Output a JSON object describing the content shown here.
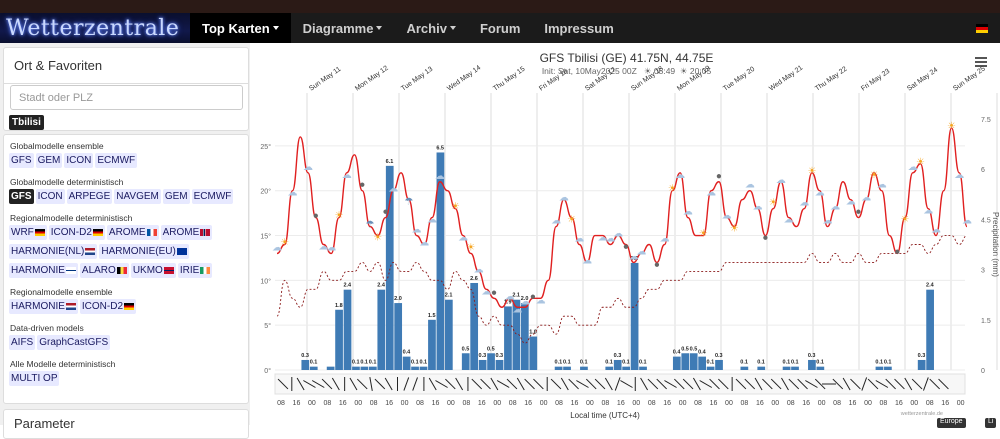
{
  "nav": {
    "logo": "Wetterzentrale",
    "items": [
      {
        "label": "Top Karten",
        "caret": true,
        "active": true
      },
      {
        "label": "Diagramme",
        "caret": true,
        "active": false
      },
      {
        "label": "Archiv",
        "caret": true,
        "active": false
      },
      {
        "label": "Forum",
        "caret": false,
        "active": false
      },
      {
        "label": "Impressum",
        "caret": false,
        "active": false
      }
    ]
  },
  "sidebar": {
    "location_title": "Ort & Favoriten",
    "search_placeholder": "Stadt oder PLZ",
    "favorite": "Tbilisi",
    "groups": [
      {
        "title": "Globalmodelle ensemble",
        "rows": [
          [
            {
              "label": "GFS"
            },
            {
              "label": "GEM"
            },
            {
              "label": "ICON"
            },
            {
              "label": "ECMWF"
            }
          ]
        ]
      },
      {
        "title": "Globalmodelle deterministisch",
        "rows": [
          [
            {
              "label": "GFS",
              "sel": true
            },
            {
              "label": "ICON"
            },
            {
              "label": "ARPEGE"
            },
            {
              "label": "NAVGEM"
            },
            {
              "label": "GEM"
            },
            {
              "label": "ECMWF"
            }
          ]
        ]
      },
      {
        "title": "Regionalmodelle deterministisch",
        "rows": [
          [
            {
              "label": "WRF",
              "flag": "de"
            },
            {
              "label": "ICON-D2",
              "flag": "de"
            },
            {
              "label": "AROME",
              "flag": "fr"
            },
            {
              "label": "AROME",
              "flag": "no"
            }
          ],
          [
            {
              "label": "HARMONIE(NL)",
              "flag": "nl"
            },
            {
              "label": "HARMONIE(EU)",
              "flag": "eu"
            }
          ],
          [
            {
              "label": "HARMONIE",
              "flag": "fi"
            },
            {
              "label": "ALARO",
              "flag": "be"
            },
            {
              "label": "UKMO",
              "flag": "uk"
            },
            {
              "label": "IRIE",
              "flag": "ie"
            }
          ]
        ]
      },
      {
        "title": "Regionalmodelle ensemble",
        "rows": [
          [
            {
              "label": "HARMONIE",
              "flag": "nl"
            },
            {
              "label": "ICON-D2",
              "flag": "de"
            }
          ]
        ]
      },
      {
        "title": "Data-driven models",
        "rows": [
          [
            {
              "label": "AIFS"
            },
            {
              "label": "GraphCastGFS"
            }
          ]
        ]
      },
      {
        "title": "Alle Modelle deterministisch",
        "rows": [
          [
            {
              "label": "MULTI OP"
            }
          ]
        ]
      }
    ],
    "param_title": "Parameter"
  },
  "colors": {
    "temp": "#e02020",
    "dew": "#8b1a1a",
    "precip": "#3f7bb5",
    "de_flag_red": "#dd0000",
    "de_flag_gold": "#ffce00"
  },
  "chart_data": {
    "type": "bar",
    "title": "GFS Tbilisi (GE) 41.75N, 44.75E",
    "subtitle": "Init: Sat, 10May2025 00Z",
    "sunrise": "05:49",
    "sunset": "20:05",
    "days": [
      "Sun May 11",
      "Mon May 12",
      "Tue May 13",
      "Wed May 14",
      "Thu May 15",
      "Fri May 16",
      "Sat May 17",
      "Sun May 18",
      "Mon May 19",
      "Tue May 20",
      "Wed May 21",
      "Thu May 22",
      "Fri May 23",
      "Sat May 24",
      "Sun May 25"
    ],
    "xticks": [
      "08",
      "16",
      "00",
      "08",
      "16",
      "00",
      "08",
      "16",
      "00",
      "08",
      "16",
      "00",
      "08",
      "16",
      "00",
      "08",
      "16",
      "00",
      "08",
      "16",
      "00",
      "08",
      "16",
      "00",
      "08",
      "16",
      "00",
      "08",
      "16",
      "00",
      "08",
      "16",
      "00",
      "08",
      "16",
      "00",
      "08",
      "16",
      "00",
      "08",
      "16",
      "00",
      "08",
      "16",
      "00"
    ],
    "xlabel": "Local time (UTC+4)",
    "ylabel_right": "Precipitation (mm)",
    "y_left_ticks": [
      "25°",
      "20°",
      "15°",
      "10°",
      "5°",
      "0°"
    ],
    "y_right_ticks": [
      "7.5",
      "6",
      "4.5",
      "3",
      "1.5",
      "0"
    ],
    "temp_range": [
      0,
      28
    ],
    "precip_range": [
      0,
      7.5
    ],
    "temperature": [
      13,
      14,
      20,
      26,
      22,
      17,
      14,
      13,
      17,
      22,
      24,
      20,
      16,
      15,
      17,
      20,
      22,
      19,
      15,
      14,
      17,
      21,
      20,
      18,
      15,
      13,
      11,
      9,
      8,
      7,
      8,
      7,
      7,
      8,
      8,
      10,
      16,
      19,
      17,
      14,
      12,
      15,
      15,
      14,
      15,
      14,
      12,
      13,
      14,
      12,
      14,
      20,
      22,
      17,
      15,
      15,
      20,
      21,
      17,
      16,
      19,
      20,
      18,
      15,
      18,
      21,
      17,
      16,
      18,
      22,
      20,
      16,
      18,
      21,
      19,
      17,
      19,
      22,
      20,
      15,
      13,
      17,
      22,
      23,
      18,
      15,
      20,
      27,
      22,
      16
    ],
    "dewpoint": [
      6,
      10,
      8,
      7,
      9,
      9,
      11,
      10,
      10,
      11,
      11,
      12,
      11,
      12,
      10,
      12,
      11,
      11,
      12,
      11,
      10,
      10,
      9,
      11,
      10,
      9,
      6,
      5,
      6,
      5,
      5,
      4,
      3,
      4,
      5,
      5,
      4,
      6,
      6,
      5,
      5,
      5,
      7,
      7,
      8,
      7,
      7,
      8,
      9,
      9,
      10,
      10,
      10,
      11,
      11,
      11,
      11,
      11,
      12,
      12,
      12,
      12,
      12,
      12,
      12,
      12,
      12,
      12,
      12,
      13,
      12,
      12,
      13,
      12,
      12,
      13,
      12,
      12,
      13,
      13,
      13,
      13,
      14,
      14,
      13,
      14,
      15,
      15,
      14,
      15
    ],
    "precip": [
      0,
      0.3,
      0.1,
      0,
      0.1,
      1.8,
      2.4,
      0.1,
      0.1,
      0.1,
      2.4,
      6.1,
      2.0,
      0.4,
      0.1,
      0.1,
      1.5,
      6.5,
      2.1,
      0,
      0.5,
      2.6,
      0.3,
      0.5,
      0.3,
      1.9,
      2.1,
      2.0,
      1.0,
      0,
      0,
      0.1,
      0.1,
      0,
      0.1,
      0,
      0,
      0.1,
      0.3,
      0.1,
      3.2,
      0.1,
      0,
      0,
      0,
      0.4,
      0.5,
      0.5,
      0.4,
      0.1,
      0.3,
      0,
      0,
      0.1,
      0,
      0.1,
      0,
      0,
      0.1,
      0.1,
      0,
      0.3,
      0.1,
      0,
      0,
      0,
      0,
      0,
      0,
      0.1,
      0.1,
      0,
      0,
      0,
      0.3,
      2.4
    ],
    "precip_labels": [
      {
        "i": 1,
        "v": "0.3"
      },
      {
        "i": 2,
        "v": "0.1"
      },
      {
        "i": 5,
        "v": "1.8"
      },
      {
        "i": 6,
        "v": "2.4"
      },
      {
        "i": 7,
        "v": "0.1"
      },
      {
        "i": 8,
        "v": "0.1"
      },
      {
        "i": 9,
        "v": "0.1"
      },
      {
        "i": 10,
        "v": "2.4"
      },
      {
        "i": 11,
        "v": "6.1"
      },
      {
        "i": 12,
        "v": "2.0"
      },
      {
        "i": 13,
        "v": "0.4"
      },
      {
        "i": 14,
        "v": "0.1"
      },
      {
        "i": 15,
        "v": "0.1"
      },
      {
        "i": 16,
        "v": "1.5"
      },
      {
        "i": 17,
        "v": "6.5"
      },
      {
        "i": 18,
        "v": "2.1"
      },
      {
        "i": 20,
        "v": "0.5"
      },
      {
        "i": 21,
        "v": "2.6"
      },
      {
        "i": 22,
        "v": "0.3"
      },
      {
        "i": 23,
        "v": "0.5"
      },
      {
        "i": 24,
        "v": "0.3"
      },
      {
        "i": 25,
        "v": "1.9"
      },
      {
        "i": 26,
        "v": "2.1"
      },
      {
        "i": 27,
        "v": "2.0"
      },
      {
        "i": 28,
        "v": "1.0"
      },
      {
        "i": 31,
        "v": "0.1"
      },
      {
        "i": 32,
        "v": "0.1"
      },
      {
        "i": 34,
        "v": "0.1"
      },
      {
        "i": 37,
        "v": "0.1"
      },
      {
        "i": 38,
        "v": "0.3"
      },
      {
        "i": 39,
        "v": "0.1"
      },
      {
        "i": 40,
        "v": "3.2"
      },
      {
        "i": 41,
        "v": "0.1"
      },
      {
        "i": 45,
        "v": "0.4"
      },
      {
        "i": 46,
        "v": "0.5"
      },
      {
        "i": 47,
        "v": "0.5"
      },
      {
        "i": 48,
        "v": "0.4"
      },
      {
        "i": 49,
        "v": "0.1"
      },
      {
        "i": 50,
        "v": "0.3"
      },
      {
        "i": 53,
        "v": "0.1"
      },
      {
        "i": 55,
        "v": "0.1"
      },
      {
        "i": 58,
        "v": "0.1"
      },
      {
        "i": 59,
        "v": "0.1"
      },
      {
        "i": 61,
        "v": "0.3"
      },
      {
        "i": 62,
        "v": "0.1"
      },
      {
        "i": 69,
        "v": "0.1"
      },
      {
        "i": 70,
        "v": "0.1"
      },
      {
        "i": 74,
        "v": "0.3"
      },
      {
        "i": 75,
        "v": "2.4"
      }
    ],
    "wind_dir_deg": [
      315,
      0,
      330,
      300,
      300,
      315,
      330,
      0,
      330,
      315,
      350,
      315,
      330,
      0,
      200,
      20,
      0,
      330,
      300,
      315,
      330,
      0,
      315,
      315,
      330,
      300,
      315,
      330,
      315,
      315,
      0,
      315,
      330,
      315,
      300,
      315,
      315,
      330,
      20,
      300,
      0,
      330,
      315,
      315,
      300,
      315,
      315,
      330,
      300,
      315,
      315,
      0,
      315,
      315,
      330,
      315,
      315,
      330,
      315,
      315,
      300,
      315,
      90,
      315,
      330,
      315,
      20,
      315,
      300,
      315,
      315,
      330,
      315,
      20,
      315,
      315
    ],
    "icons": [
      "cloud",
      "sun",
      "cloud",
      "cloud",
      "moon",
      "cloud",
      "cloud",
      "sun",
      "cloud",
      "moon",
      "rain",
      "sun",
      "moon",
      "cloud",
      "rain",
      "cloud",
      "cloud",
      "cloud",
      "cloud",
      "sun",
      "cloud",
      "sun",
      "cloud",
      "cloud",
      "moon",
      "cloud",
      "cloud",
      "cloud",
      "moon",
      "cloud",
      "cloud",
      "cloud",
      "sun",
      "cloud",
      "cloud",
      "cloud",
      "cloud",
      "cloud",
      "moon",
      "cloud",
      "cloud",
      "moon",
      "cloud",
      "sun",
      "cloud",
      "cloud",
      "sun",
      "cloud",
      "moon",
      "cloud",
      "sun",
      "cloud",
      "cloud",
      "moon",
      "sun",
      "cloud",
      "cloud",
      "cloud",
      "sun",
      "cloud",
      "cloud",
      "cloud",
      "cloud",
      "moon",
      "cloud",
      "sun",
      "cloud",
      "moon",
      "sun",
      "cloud",
      "sun",
      "cloud",
      "cloud",
      "sun",
      "cloud",
      "cloud"
    ],
    "watermark": "wetterzentrale.de"
  },
  "footer_buttons": [
    "Europe",
    "Li"
  ]
}
